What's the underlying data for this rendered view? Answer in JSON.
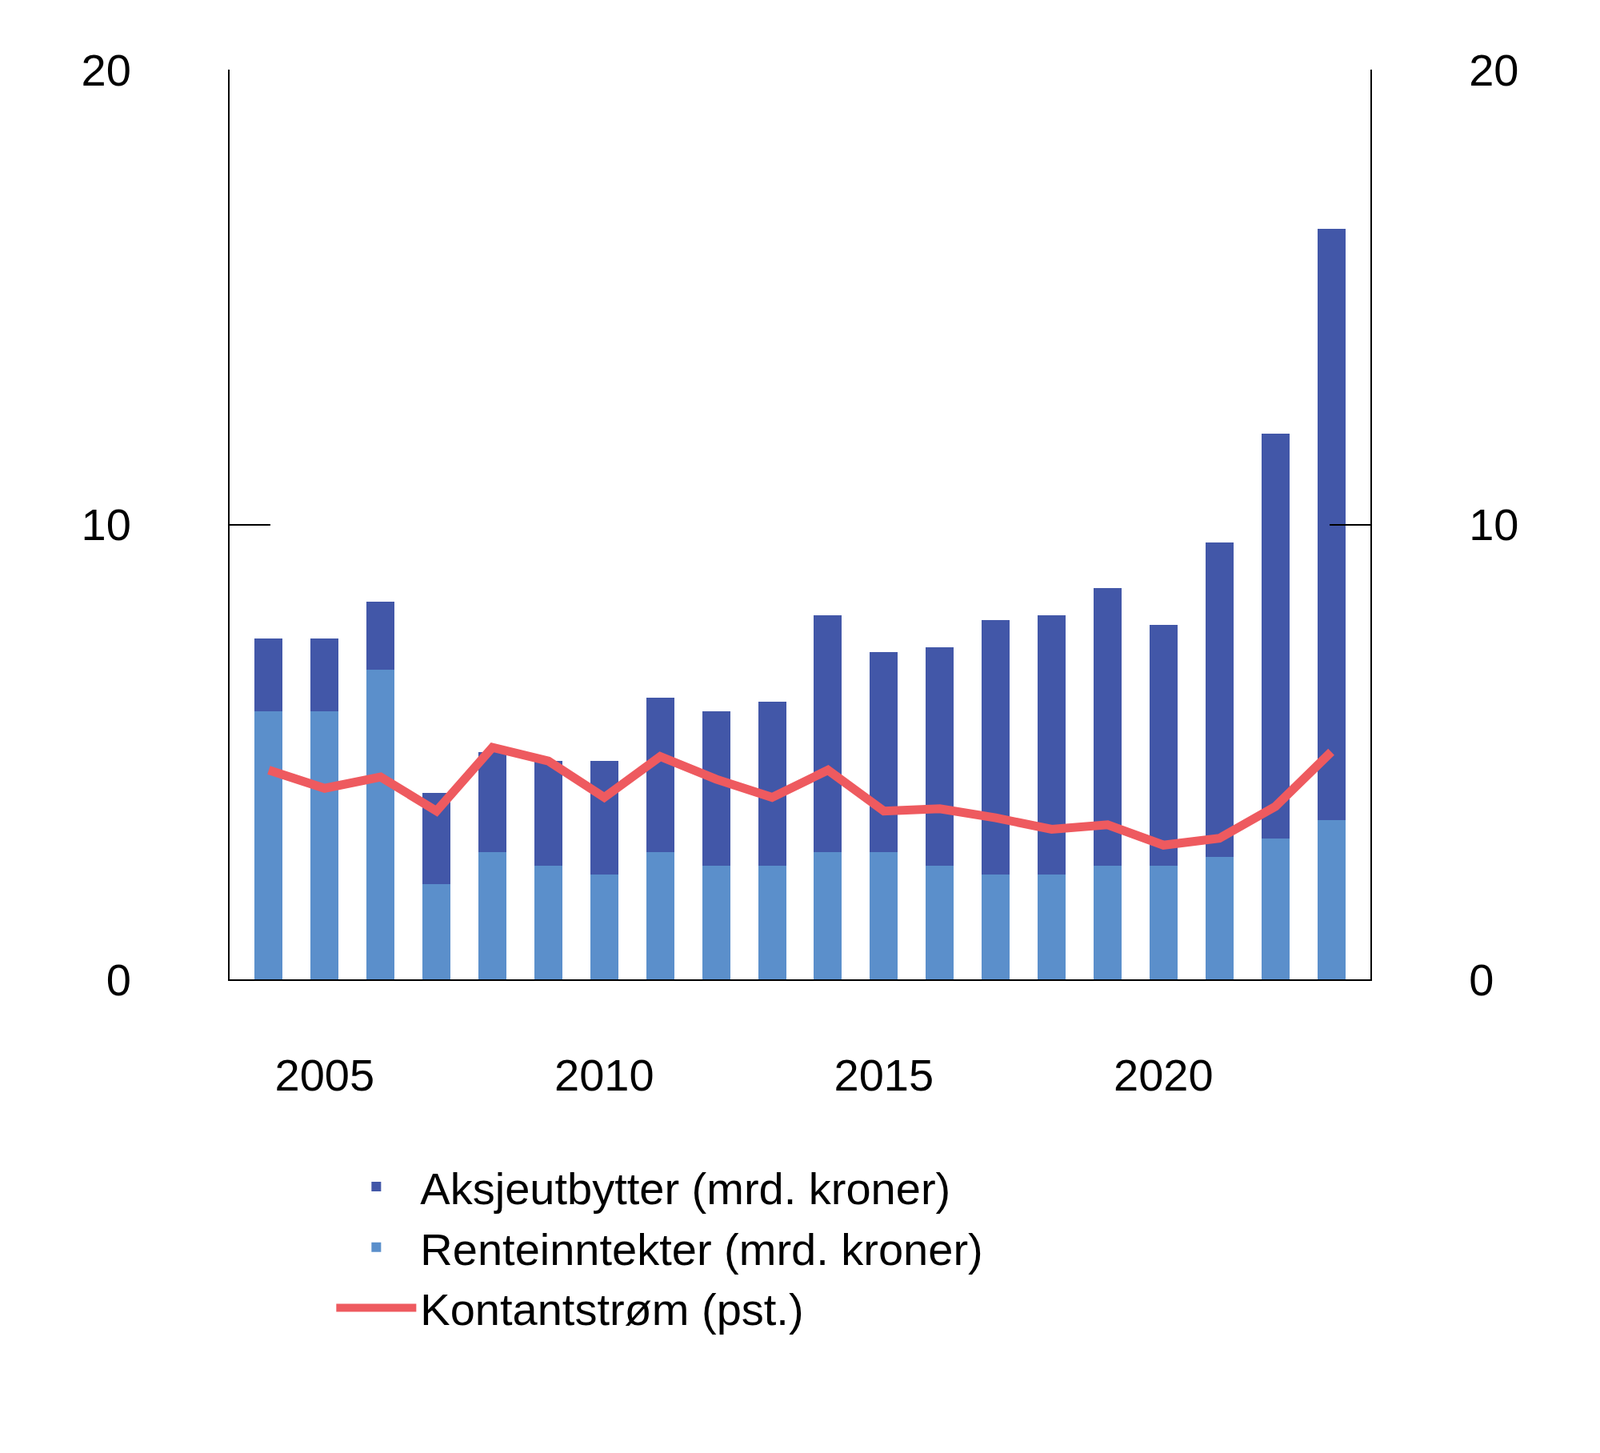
{
  "chart_data": {
    "type": "bar",
    "stacked": true,
    "x": [
      2004,
      2005,
      2006,
      2007,
      2008,
      2009,
      2010,
      2011,
      2012,
      2013,
      2014,
      2015,
      2016,
      2017,
      2018,
      2019,
      2020,
      2021,
      2022,
      2023
    ],
    "xlim": [
      2003.3,
      2023.7
    ],
    "xticks": [
      2005,
      2010,
      2015,
      2020
    ],
    "ylim": [
      0,
      20
    ],
    "yticks": [
      0,
      10,
      20
    ],
    "y2lim": [
      0,
      20
    ],
    "y2ticks": [
      0,
      10,
      20
    ],
    "grid": false,
    "legend": "bottom",
    "series": [
      {
        "name": "Renteinntekter (mrd. kroner)",
        "type": "bar",
        "color": "#5b8fcb",
        "values": [
          5.9,
          5.9,
          6.8,
          2.1,
          2.8,
          2.5,
          2.3,
          2.8,
          2.5,
          2.5,
          2.8,
          2.8,
          2.5,
          2.3,
          2.3,
          2.5,
          2.5,
          2.7,
          3.1,
          3.5
        ]
      },
      {
        "name": "Aksjeutbytter (mrd. kroner)",
        "type": "bar",
        "color": "#4257a8",
        "values": [
          1.6,
          1.6,
          1.5,
          2.0,
          2.2,
          2.3,
          2.5,
          3.4,
          3.4,
          3.6,
          5.2,
          4.4,
          4.8,
          5.6,
          5.7,
          6.1,
          5.3,
          6.9,
          8.9,
          13.0
        ]
      },
      {
        "name": "Kontantstrøm (pst.)",
        "type": "line",
        "axis": "y2",
        "color": "#ee5a5f",
        "values": [
          4.6,
          4.2,
          4.45,
          3.7,
          5.1,
          4.8,
          4.0,
          4.9,
          4.4,
          4.0,
          4.6,
          3.7,
          3.75,
          3.55,
          3.3,
          3.4,
          2.95,
          3.1,
          3.8,
          5.0
        ]
      }
    ]
  }
}
